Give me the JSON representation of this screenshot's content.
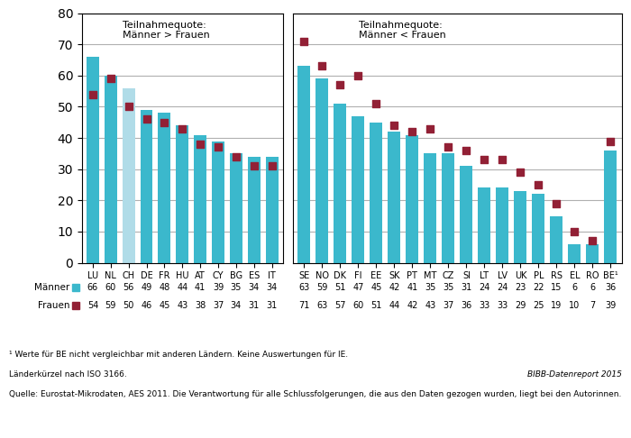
{
  "chart_data": [
    {
      "type": "bar",
      "categories": [
        "LU",
        "NL",
        "CH",
        "DE",
        "FR",
        "HU",
        "AT",
        "CY",
        "BG",
        "ES",
        "IT"
      ],
      "series": [
        {
          "name": "Männer",
          "type": "bar",
          "color": "#3bb8cc",
          "colors": [
            "#3bb8cc",
            "#3bb8cc",
            "#b0dce8",
            "#3bb8cc",
            "#3bb8cc",
            "#3bb8cc",
            "#3bb8cc",
            "#3bb8cc",
            "#3bb8cc",
            "#3bb8cc",
            "#3bb8cc"
          ],
          "values": [
            66,
            60,
            56,
            49,
            48,
            44,
            41,
            39,
            35,
            34,
            34
          ]
        },
        {
          "name": "Frauen",
          "type": "scatter",
          "marker": "square",
          "color": "#922035",
          "values": [
            54,
            59,
            50,
            46,
            45,
            43,
            38,
            37,
            34,
            31,
            31
          ]
        }
      ],
      "ylim": [
        0,
        80
      ],
      "yticks": [
        0,
        10,
        20,
        30,
        40,
        50,
        60,
        70,
        80
      ],
      "grid": true,
      "data_labels": true,
      "annotations": [
        "Teilnahmequote:\nMänner > Frauen"
      ]
    },
    {
      "type": "bar",
      "categories": [
        "SE",
        "NO",
        "DK",
        "FI",
        "EE",
        "SK",
        "PT",
        "MT",
        "CZ",
        "SI",
        "LT",
        "LV",
        "UK",
        "PL",
        "RS",
        "EL",
        "RO",
        "BE¹"
      ],
      "series": [
        {
          "name": "Männer",
          "type": "bar",
          "color": "#3bb8cc",
          "values": [
            63,
            59,
            51,
            47,
            45,
            42,
            41,
            35,
            35,
            31,
            24,
            24,
            23,
            22,
            15,
            6,
            6,
            36
          ]
        },
        {
          "name": "Frauen",
          "type": "scatter",
          "marker": "square",
          "color": "#922035",
          "values": [
            71,
            63,
            57,
            60,
            51,
            44,
            42,
            43,
            37,
            36,
            33,
            33,
            29,
            25,
            19,
            10,
            7,
            39
          ]
        }
      ],
      "ylim": [
        0,
        80
      ],
      "yticks": [
        0,
        10,
        20,
        30,
        40,
        50,
        60,
        70,
        80
      ],
      "grid": true,
      "data_labels": true,
      "tick_labels": "x",
      "annotations": [
        "Teilnahmequote:\nMänner < Frauen"
      ]
    }
  ],
  "notes": [
    "¹ Werte für BE nicht vergleichbar mit anderen Ländern. Keine Auswertungen für IE.",
    "Länderkürzel nach ISO 3166.",
    "Quelle: Eurostat-Mikrodaten, AES 2011. Die Verantwortung für alle Schlussfolgerungen, die aus den Daten gezogen wurden, liegt bei den Autorinnen."
  ],
  "source": "BIBB-Datenreport 2015"
}
